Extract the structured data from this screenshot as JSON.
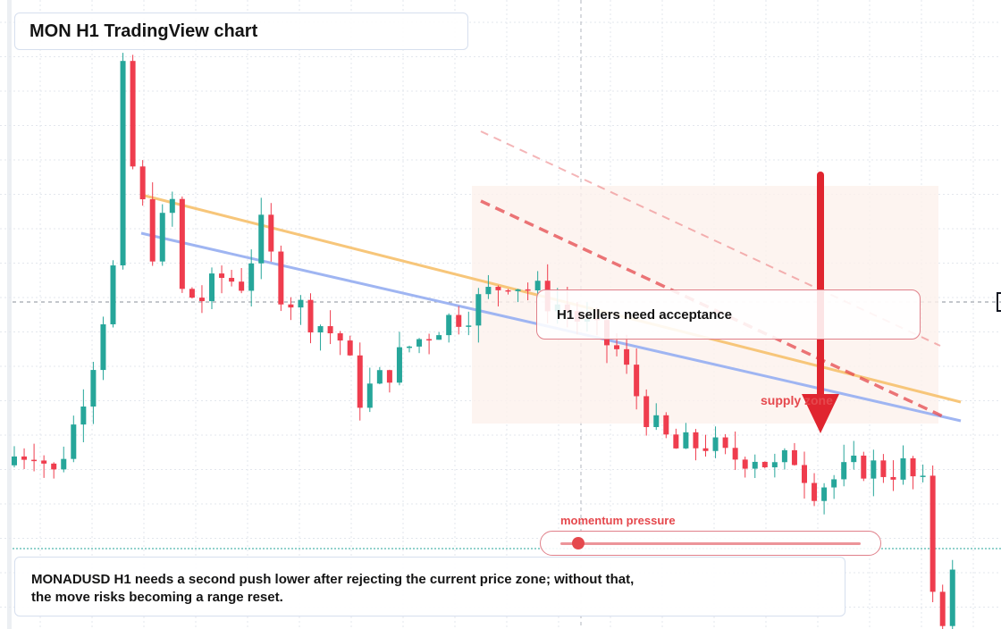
{
  "title": "MON H1 TradingView chart",
  "callout": "H1 sellers need acceptance",
  "supply_label": "supply zone",
  "momentum": {
    "label": "momentum pressure",
    "level_percent": 6
  },
  "note": {
    "line1": "MONADUSD H1 needs a second push lower after rejecting the current price zone; without that,",
    "line2": "the move risks becoming a range reset."
  },
  "colors": {
    "bull": "#26a69a",
    "bear": "#ef3d4e",
    "grid": "#e3e7ed",
    "upper_trend": "#f7c67a",
    "lower_trend": "#9fb5f2",
    "down_channel": "#e5484d",
    "arrow": "#e0252f",
    "zone": "#fdf1ec"
  },
  "chart_data": {
    "type": "candlestick",
    "symbol": "MONADUSD",
    "timeframe": "H1",
    "bars": 96,
    "close_path": [
      [
        0,
        0.0449
      ],
      [
        2,
        0.0453
      ],
      [
        4,
        0.0441
      ],
      [
        6,
        0.0462
      ],
      [
        8,
        0.0492
      ],
      [
        10,
        0.053
      ],
      [
        11,
        0.0615
      ],
      [
        12,
        0.0575
      ],
      [
        14,
        0.054
      ],
      [
        16,
        0.056
      ],
      [
        17,
        0.052
      ],
      [
        19,
        0.0518
      ],
      [
        21,
        0.0527
      ],
      [
        23,
        0.0525
      ],
      [
        25,
        0.0548
      ],
      [
        27,
        0.0522
      ],
      [
        30,
        0.051
      ],
      [
        33,
        0.05
      ],
      [
        35,
        0.0475
      ],
      [
        37,
        0.0482
      ],
      [
        40,
        0.0497
      ],
      [
        43,
        0.0507
      ],
      [
        46,
        0.0513
      ],
      [
        50,
        0.0527
      ],
      [
        53,
        0.052
      ],
      [
        56,
        0.0513
      ],
      [
        58,
        0.0505
      ],
      [
        61,
        0.0495
      ],
      [
        63,
        0.0476
      ],
      [
        65,
        0.046
      ],
      [
        67,
        0.0452
      ],
      [
        70,
        0.0455
      ],
      [
        72,
        0.0448
      ],
      [
        75,
        0.045
      ],
      [
        77,
        0.0443
      ],
      [
        79,
        0.0449
      ],
      [
        81,
        0.0436
      ],
      [
        83,
        0.0439
      ],
      [
        86,
        0.0445
      ],
      [
        88,
        0.0443
      ],
      [
        90,
        0.0444
      ],
      [
        92,
        0.0434
      ],
      [
        93,
        0.0392
      ],
      [
        94,
        0.038
      ],
      [
        95,
        0.0396
      ]
    ],
    "annotations": [
      "H1 sellers need acceptance",
      "supply zone",
      "momentum pressure"
    ]
  }
}
